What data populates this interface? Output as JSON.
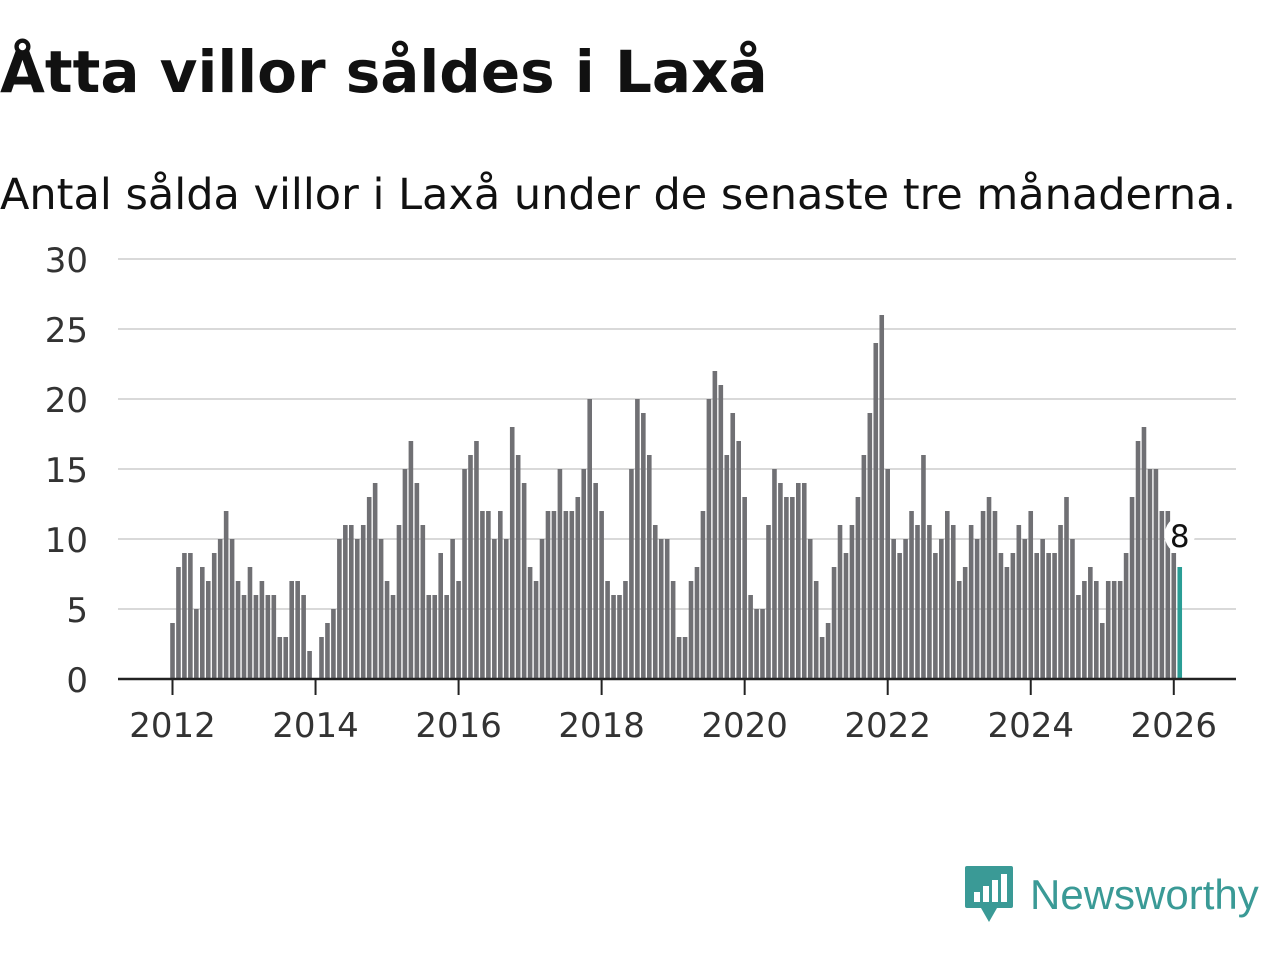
{
  "header": {
    "title": "Åtta villor såldes i Laxå",
    "subtitle": "Antal sålda villor i Laxå under de senaste tre månaderna."
  },
  "brand": {
    "name": "Newsworthy"
  },
  "colors": {
    "bar": "#707074",
    "highlight": "#2a9d95",
    "grid": "#d9d9d9",
    "axis": "#222222"
  },
  "chart_data": {
    "type": "bar",
    "title": "Åtta villor såldes i Laxå",
    "subtitle": "Antal sålda villor i Laxå under de senaste tre månaderna.",
    "xlabel": "",
    "ylabel": "",
    "ylim": [
      0,
      30
    ],
    "yticks": [
      "0",
      "5",
      "10",
      "15",
      "20",
      "25",
      "30"
    ],
    "xticks": [
      "2012",
      "2014",
      "2016",
      "2018",
      "2020",
      "2022",
      "2024",
      "2026"
    ],
    "start": "2012-01",
    "grid": true,
    "highlight_label": "8",
    "values": [
      4,
      8,
      9,
      9,
      5,
      8,
      7,
      9,
      10,
      12,
      10,
      7,
      6,
      8,
      6,
      7,
      6,
      6,
      3,
      3,
      7,
      7,
      6,
      2,
      0,
      3,
      4,
      5,
      10,
      11,
      11,
      10,
      11,
      13,
      14,
      10,
      7,
      6,
      11,
      15,
      17,
      14,
      11,
      6,
      6,
      9,
      6,
      10,
      7,
      15,
      16,
      17,
      12,
      12,
      10,
      12,
      10,
      18,
      16,
      14,
      8,
      7,
      10,
      12,
      12,
      15,
      12,
      12,
      13,
      15,
      20,
      14,
      12,
      7,
      6,
      6,
      7,
      15,
      20,
      19,
      16,
      11,
      10,
      10,
      7,
      3,
      3,
      7,
      8,
      12,
      20,
      22,
      21,
      16,
      19,
      17,
      13,
      6,
      5,
      5,
      11,
      15,
      14,
      13,
      13,
      14,
      14,
      10,
      7,
      3,
      4,
      8,
      11,
      9,
      11,
      13,
      16,
      19,
      24,
      26,
      15,
      10,
      9,
      10,
      12,
      11,
      16,
      11,
      9,
      10,
      12,
      11,
      7,
      8,
      11,
      10,
      12,
      13,
      12,
      9,
      8,
      9,
      11,
      10,
      12,
      9,
      10,
      9,
      9,
      11,
      13,
      10,
      6,
      7,
      8,
      7,
      4,
      7,
      7,
      7,
      9,
      13,
      17,
      18,
      15,
      15,
      12,
      12,
      9,
      8
    ]
  }
}
